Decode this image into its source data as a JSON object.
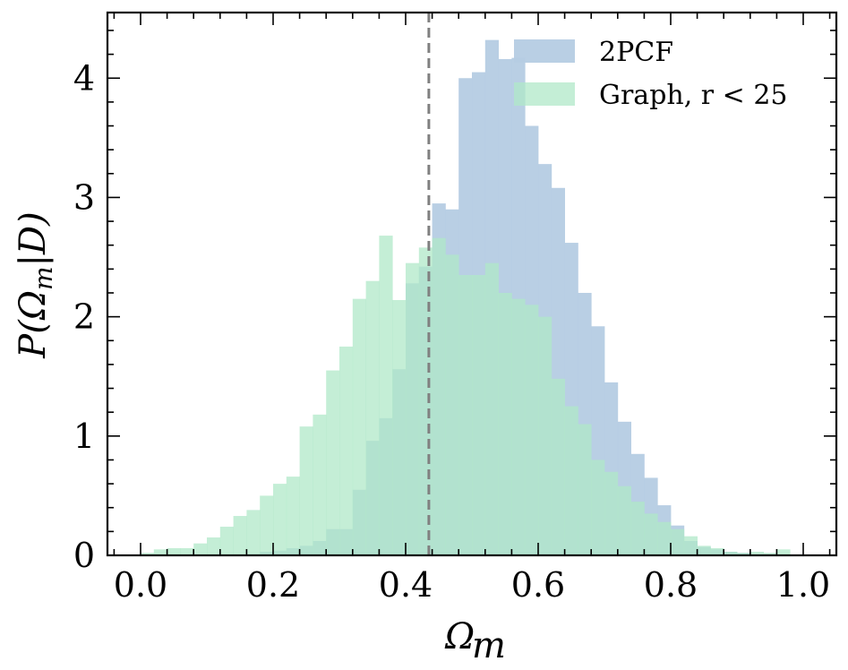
{
  "chart_data": {
    "type": "histogram",
    "xlabel": "Ω_m",
    "ylabel": "P(Ω_m|D)",
    "xlim": [
      -0.05,
      1.05
    ],
    "ylim": [
      0,
      4.55
    ],
    "xticks": [
      "0.0",
      "0.2",
      "0.4",
      "0.6",
      "0.8",
      "1.0"
    ],
    "xtick_values": [
      0.0,
      0.2,
      0.4,
      0.6,
      0.8,
      1.0
    ],
    "yticks": [
      "0",
      "1",
      "2",
      "3",
      "4"
    ],
    "ytick_values": [
      0,
      1,
      2,
      3,
      4
    ],
    "reference_line": {
      "x": 0.435,
      "style": "dashed",
      "color": "#808080"
    },
    "legend_position": "top-right",
    "bin_start": 0.0,
    "bin_width": 0.02,
    "series": [
      {
        "name": "2PCF",
        "color": "#b5cce3",
        "values": [
          0,
          0,
          0,
          0,
          0,
          0,
          0,
          0,
          0.01,
          0.03,
          0.04,
          0.06,
          0.08,
          0.12,
          0.22,
          0.22,
          0.55,
          0.96,
          1.15,
          1.56,
          2.28,
          2.42,
          2.95,
          2.9,
          4.0,
          4.05,
          4.32,
          4.16,
          4.17,
          3.6,
          3.28,
          3.08,
          2.62,
          2.2,
          1.92,
          1.45,
          1.12,
          0.85,
          0.65,
          0.42,
          0.25,
          0.12,
          0.07,
          0.05,
          0.03,
          0.02,
          0.01,
          0.01,
          0,
          0
        ]
      },
      {
        "name": "Graph, r < 25",
        "color": "#b0e8c8",
        "values": [
          0.02,
          0.05,
          0.06,
          0.06,
          0.1,
          0.15,
          0.24,
          0.33,
          0.38,
          0.5,
          0.6,
          0.66,
          1.08,
          1.18,
          1.55,
          1.75,
          2.15,
          2.3,
          2.68,
          2.14,
          2.45,
          2.58,
          2.66,
          2.52,
          2.35,
          2.35,
          2.45,
          2.2,
          2.15,
          2.1,
          2.0,
          1.48,
          1.25,
          1.1,
          0.8,
          0.7,
          0.58,
          0.45,
          0.35,
          0.28,
          0.22,
          0.16,
          0.08,
          0.06,
          0.03,
          0.02,
          0.03,
          0.02,
          0.05,
          0
        ]
      }
    ]
  }
}
